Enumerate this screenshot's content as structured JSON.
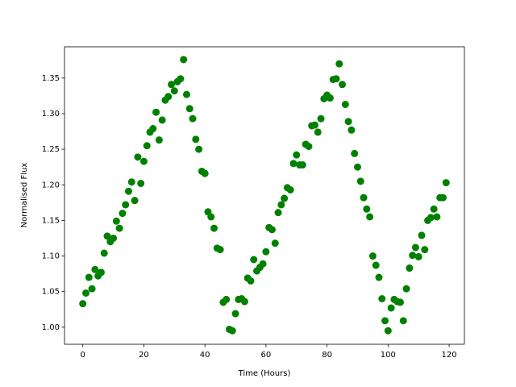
{
  "chart_data": {
    "type": "scatter",
    "x_label": "Time (Hours)",
    "y_label": "Normalised Flux",
    "color": "#008000",
    "x": [
      0,
      1,
      2,
      3,
      4,
      5,
      6,
      7,
      8,
      9,
      10,
      11,
      12,
      13,
      14,
      15,
      16,
      17,
      18,
      19,
      20,
      21,
      22,
      23,
      24,
      25,
      26,
      27,
      28,
      29,
      30,
      31,
      32,
      33,
      34,
      35,
      36,
      37,
      38,
      39,
      40,
      41,
      42,
      43,
      44,
      45,
      46,
      47,
      48,
      49,
      50,
      51,
      52,
      53,
      54,
      55,
      56,
      57,
      58,
      59,
      60,
      61,
      62,
      63,
      64,
      65,
      66,
      67,
      68,
      69,
      70,
      71,
      72,
      73,
      74,
      75,
      76,
      77,
      78,
      79,
      80,
      81,
      82,
      83,
      84,
      85,
      86,
      87,
      88,
      89,
      90,
      91,
      92,
      93,
      94,
      95,
      96,
      97,
      98,
      99,
      100,
      101,
      102,
      103,
      104,
      105,
      106,
      107,
      108,
      109,
      110,
      111,
      112,
      113,
      114,
      115,
      116,
      117,
      118,
      119
    ],
    "values": [
      1.033,
      1.048,
      1.07,
      1.054,
      1.081,
      1.072,
      1.077,
      1.104,
      1.128,
      1.12,
      1.125,
      1.149,
      1.139,
      1.16,
      1.172,
      1.191,
      1.204,
      1.178,
      1.239,
      1.202,
      1.233,
      1.255,
      1.274,
      1.279,
      1.302,
      1.263,
      1.291,
      1.319,
      1.324,
      1.341,
      1.332,
      1.345,
      1.349,
      1.376,
      1.327,
      1.307,
      1.293,
      1.264,
      1.25,
      1.219,
      1.216,
      1.162,
      1.155,
      1.139,
      1.111,
      1.109,
      1.035,
      1.039,
      0.997,
      0.995,
      1.019,
      1.039,
      1.04,
      1.036,
      1.069,
      1.065,
      1.095,
      1.079,
      1.084,
      1.089,
      1.106,
      1.14,
      1.137,
      1.118,
      1.161,
      1.172,
      1.181,
      1.196,
      1.193,
      1.23,
      1.242,
      1.228,
      1.228,
      1.257,
      1.254,
      1.283,
      1.284,
      1.274,
      1.293,
      1.321,
      1.326,
      1.322,
      1.348,
      1.349,
      1.37,
      1.341,
      1.313,
      1.289,
      1.277,
      1.244,
      1.225,
      1.205,
      1.182,
      1.166,
      1.155,
      1.1,
      1.087,
      1.07,
      1.04,
      1.009,
      0.995,
      1.027,
      1.039,
      1.036,
      1.035,
      1.009,
      1.054,
      1.083,
      1.101,
      1.112,
      1.099,
      1.129,
      1.109,
      1.15,
      1.154,
      1.166,
      1.155,
      1.182,
      1.182,
      1.203
    ],
    "xlim": [
      -6,
      125
    ],
    "ylim": [
      0.976,
      1.394
    ],
    "xticks": [
      0,
      20,
      40,
      60,
      80,
      100,
      120
    ],
    "yticks": [
      {
        "value": 1.0,
        "label": "1.00"
      },
      1.05,
      {
        "value": 1.1,
        "label": "1.10"
      },
      1.15,
      {
        "value": 1.2,
        "label": "1.20"
      },
      1.25,
      {
        "value": 1.3,
        "label": "1.30"
      },
      1.35
    ]
  }
}
